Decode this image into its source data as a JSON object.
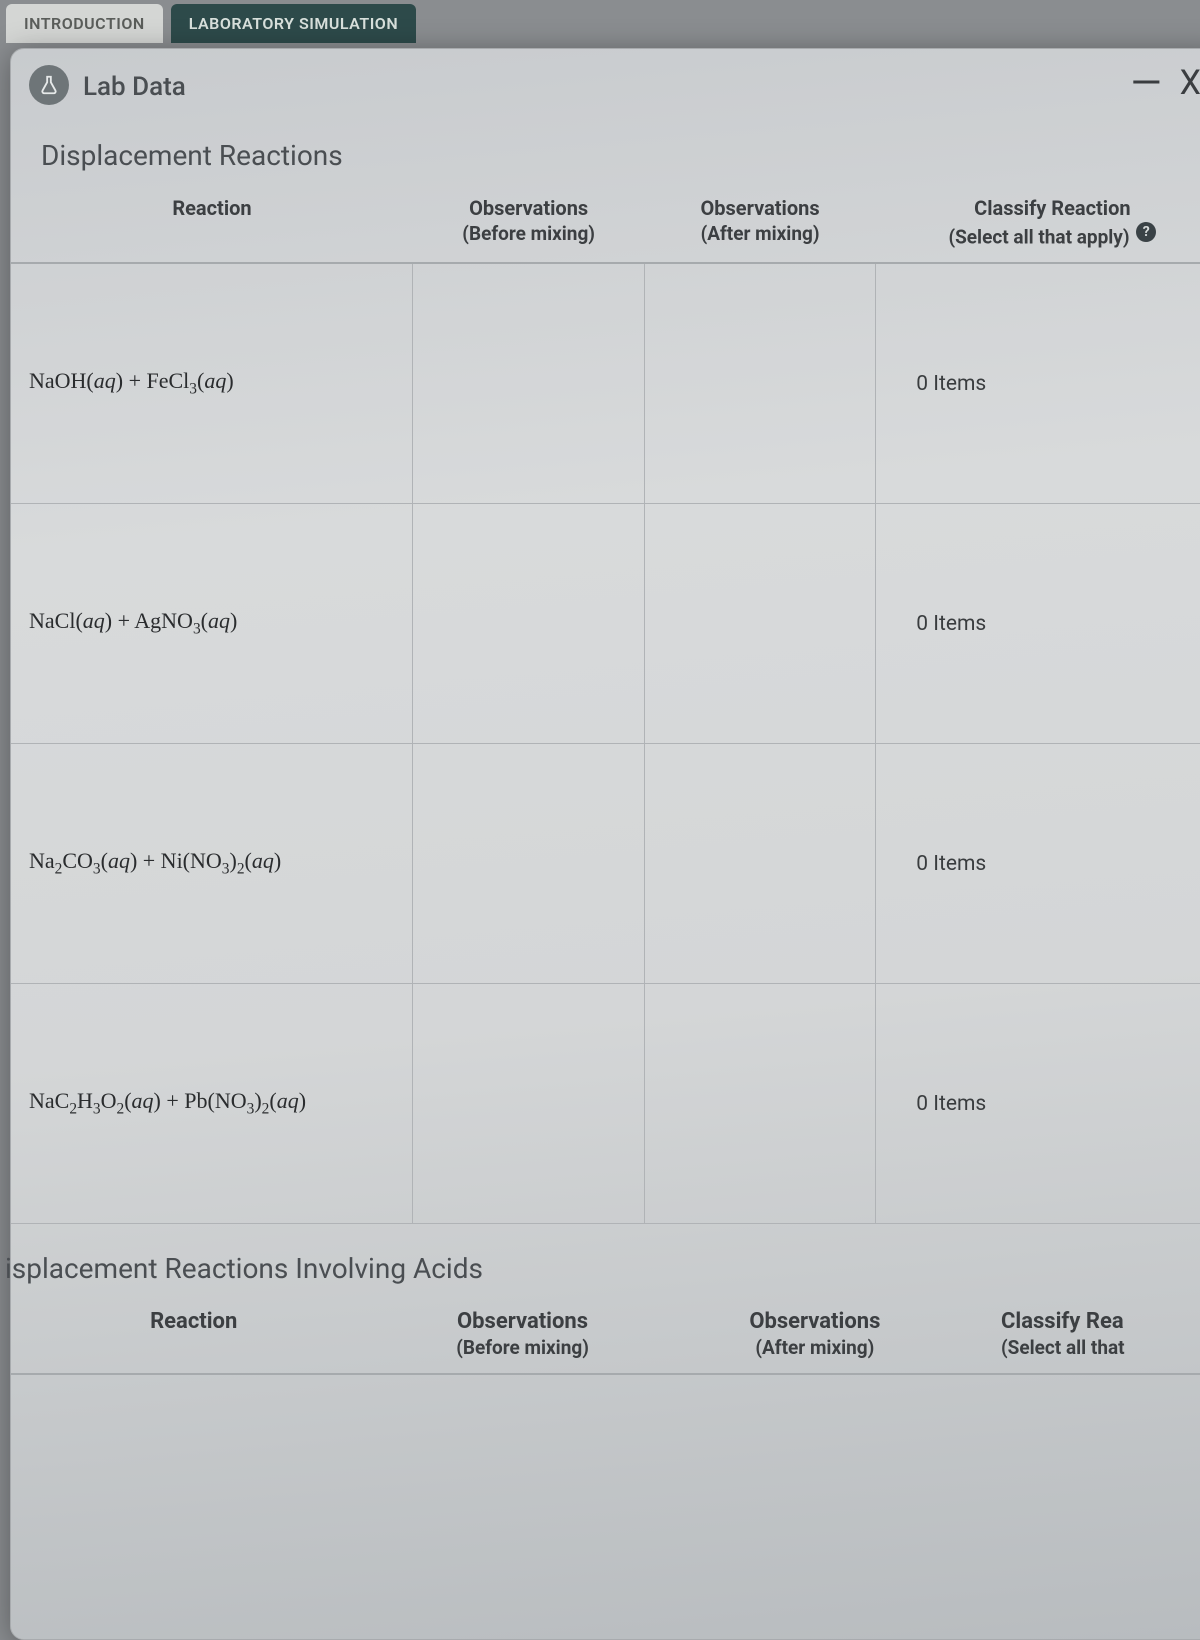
{
  "tabs": {
    "intro": "INTRODUCTION",
    "sim": "LABORATORY SIMULATION"
  },
  "panel": {
    "title": "Lab Data",
    "minimize_glyph": "—",
    "close_glyph": "X"
  },
  "section1": {
    "title": "Displacement Reactions",
    "headers": {
      "reaction": "Reaction",
      "obs_before": "Observations",
      "obs_before_sub": "(Before mixing)",
      "obs_after": "Observations",
      "obs_after_sub": "(After mixing)",
      "classify": "Classify Reaction",
      "classify_sub": "(Select all that apply)",
      "help": "?"
    },
    "rows": [
      {
        "reaction_html": "NaOH(<span class='aq'>aq</span>) + FeCl<sub>3</sub>(<span class='aq'>aq</span>)",
        "items": "0 Items"
      },
      {
        "reaction_html": "NaCl(<span class='aq'>aq</span>) + AgNO<sub>3</sub>(<span class='aq'>aq</span>)",
        "items": "0 Items"
      },
      {
        "reaction_html": "Na<sub>2</sub>CO<sub>3</sub>(<span class='aq'>aq</span>) + Ni(NO<sub>3</sub>)<sub>2</sub>(<span class='aq'>aq</span>)",
        "items": "0 Items"
      },
      {
        "reaction_html": "NaC<sub>2</sub>H<sub>3</sub>O<sub>2</sub>(<span class='aq'>aq</span>) + Pb(NO<sub>3</sub>)<sub>2</sub>(<span class='aq'>aq</span>)",
        "items": "0 Items"
      }
    ]
  },
  "section2": {
    "title": "isplacement Reactions Involving Acids",
    "headers": {
      "reaction": "Reaction",
      "obs_before": "Observations",
      "obs_before_sub": "(Before mixing)",
      "obs_after": "Observations",
      "obs_after_sub": "(After mixing)",
      "classify": "Classify Rea",
      "classify_sub": "(Select all that"
    }
  },
  "colors": {
    "tab_inactive_bg": "#d4d6d4",
    "tab_active_bg": "#2d4a4a",
    "panel_bg_top": "#c8cbce",
    "panel_bg_bottom": "#b8bcbf",
    "border": "#b0b3b6",
    "text": "#3c3f42"
  }
}
